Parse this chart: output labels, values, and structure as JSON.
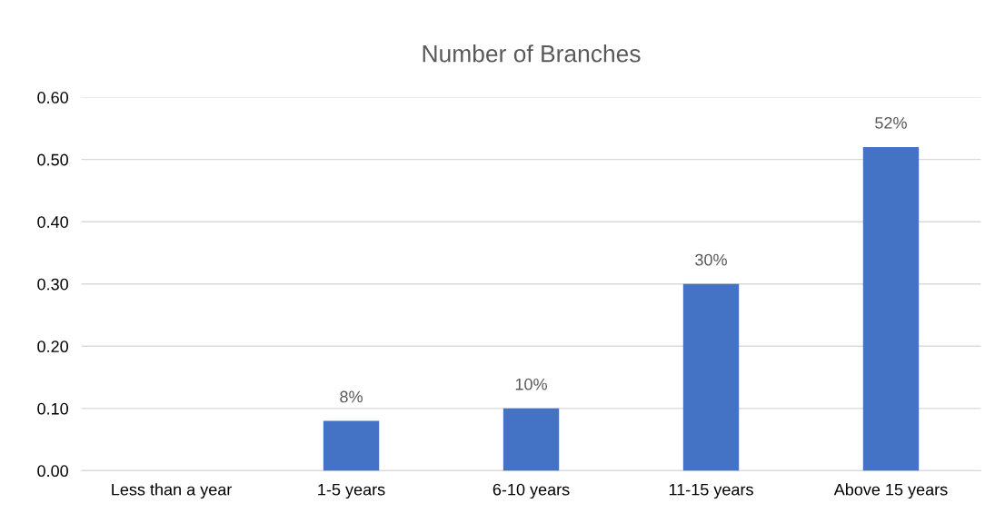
{
  "chart_data": {
    "type": "bar",
    "title": "Number of Branches",
    "categories": [
      "Less than a year",
      "1-5 years",
      "6-10 years",
      "11-15 years",
      "Above 15 years"
    ],
    "values": [
      0,
      0.08,
      0.1,
      0.3,
      0.52
    ],
    "value_labels": [
      null,
      "8%",
      "10%",
      "30%",
      "52%"
    ],
    "color": "#4472c4",
    "ylim": [
      0,
      0.6
    ],
    "yticks": [
      {
        "value": 0,
        "label": "0.00"
      },
      {
        "value": 0.1,
        "label": "0.10"
      },
      {
        "value": 0.2,
        "label": "0.20"
      },
      {
        "value": 0.3,
        "label": "0.30"
      },
      {
        "value": 0.4,
        "label": "0.40"
      },
      {
        "value": 0.5,
        "label": "0.50"
      },
      {
        "value": 0.6,
        "label": "0.60"
      }
    ],
    "grid": "y"
  }
}
